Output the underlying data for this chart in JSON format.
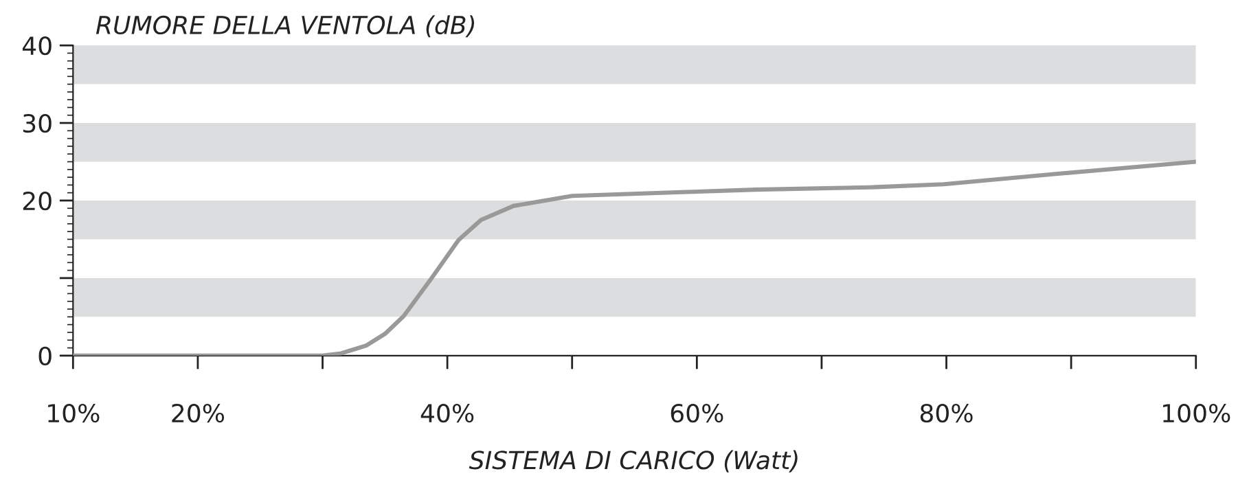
{
  "chart_data": {
    "type": "line",
    "ylabel": "RUMORE DELLA VENTOLA (dB)",
    "xlabel": "SISTEMA DI CARICO (Watt)",
    "x": [
      10,
      30,
      31.5,
      33.5,
      35,
      36.5,
      38.7,
      40.9,
      42.7,
      45.3,
      50,
      59.2,
      64.7,
      73.9,
      79.8,
      88.6,
      100
    ],
    "series": [
      {
        "color": "#999999",
        "values": [
          0,
          0,
          0.3,
          1.3,
          2.8,
          5.1,
          9.9,
          14.9,
          17.5,
          19.3,
          20.6,
          21.1,
          21.4,
          21.7,
          22.1,
          23.4,
          25
        ]
      }
    ],
    "xlim": [
      10,
      100
    ],
    "xticks": [
      {
        "value": 10,
        "label": "10%"
      },
      {
        "value": 20,
        "label": "20%"
      },
      {
        "value": 30,
        "label": null
      },
      {
        "value": 40,
        "label": "40%"
      },
      {
        "value": 50,
        "label": null
      },
      {
        "value": 60,
        "label": "60%"
      },
      {
        "value": 70,
        "label": null
      },
      {
        "value": 80,
        "label": "80%"
      },
      {
        "value": 90,
        "label": null
      },
      {
        "value": 100,
        "label": "100%"
      }
    ],
    "ylim": [
      0,
      40
    ],
    "yticks": [
      0,
      {
        "value": 10,
        "label": null
      },
      20,
      30,
      40
    ],
    "bands": [
      {
        "axis": "y",
        "from": 35,
        "to": 40,
        "color": "#dcdddf"
      },
      {
        "axis": "y",
        "from": 25,
        "to": 30,
        "color": "#dcdddf"
      },
      {
        "axis": "y",
        "from": 15,
        "to": 20,
        "color": "#dcdddf"
      },
      {
        "axis": "y",
        "from": 5,
        "to": 10,
        "color": "#dcdddf"
      }
    ],
    "grid": false,
    "legend": false,
    "marker": "none",
    "line_style": "solid"
  }
}
